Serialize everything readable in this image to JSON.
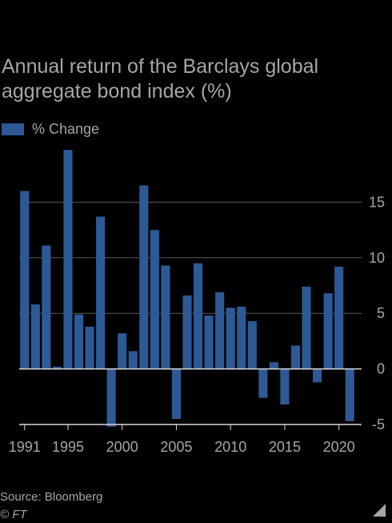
{
  "title": "Annual return of the Barclays global aggregate bond index (%)",
  "legend": {
    "label": "% Change",
    "color": "#2d5a96"
  },
  "source": "Source: Bloomberg",
  "copyright": "© FT",
  "chart_data": {
    "type": "bar",
    "title": "Annual return of the Barclays global aggregate bond index (%)",
    "series": [
      {
        "name": "% Change",
        "x": [
          1991,
          1992,
          1993,
          1994,
          1995,
          1996,
          1997,
          1998,
          1999,
          2000,
          2001,
          2002,
          2003,
          2004,
          2005,
          2006,
          2007,
          2008,
          2009,
          2010,
          2011,
          2012,
          2013,
          2014,
          2015,
          2016,
          2017,
          2018,
          2019,
          2020,
          2021
        ],
        "values": [
          16.0,
          5.8,
          11.1,
          0.2,
          19.7,
          4.9,
          3.8,
          13.7,
          -5.2,
          3.2,
          1.6,
          16.5,
          12.5,
          9.3,
          -4.5,
          6.6,
          9.5,
          4.8,
          6.9,
          5.5,
          5.6,
          4.3,
          -2.6,
          0.6,
          -3.2,
          2.1,
          7.4,
          -1.2,
          6.8,
          9.2,
          -4.7
        ]
      }
    ],
    "xlim": [
      1990.5,
      2021.5
    ],
    "ylim": [
      -5,
      20
    ],
    "yticks": [
      -5,
      0,
      5,
      10,
      15
    ],
    "xticks": [
      1991,
      1995,
      2000,
      2005,
      2010,
      2015,
      2020
    ],
    "xtick_labels": [
      "1991",
      "1995",
      "2000",
      "2005",
      "2010",
      "2015",
      "2020"
    ],
    "ytick_labels": [
      "-5",
      "0",
      "5",
      "10",
      "15"
    ],
    "grid": "horizontal",
    "y_axis_side": "right",
    "legend_position": "top-left",
    "colors": {
      "bar": "#2d5a96",
      "grid": "#5a5a5a",
      "zero_line": "#d8d8d8",
      "text": "#a6a6a6",
      "background": "#000000"
    }
  }
}
